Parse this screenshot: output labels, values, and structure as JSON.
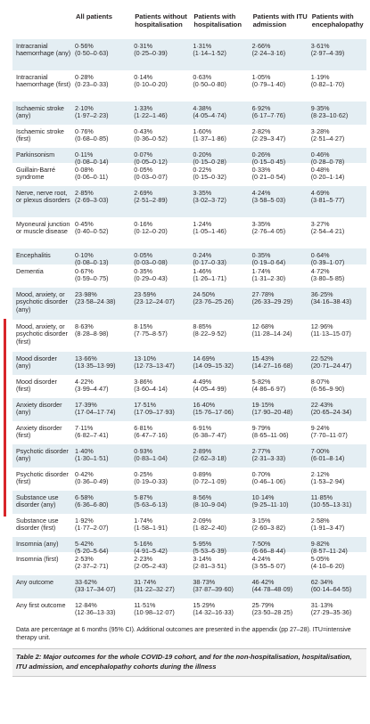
{
  "table": {
    "headers": [
      "All patients",
      "Patients without hospitalisation",
      "Patients with hospitalisation",
      "Patients with ITU admission",
      "Patients with encephalopathy"
    ],
    "rows": [
      {
        "label": "Intracranial haemorrhage (any)",
        "cells": [
          [
            "0·56%",
            "(0·50–0·63)"
          ],
          [
            "0·31%",
            "(0·25–0·39)"
          ],
          [
            "1·31%",
            "(1·14–1·52)"
          ],
          [
            "2·66%",
            "(2·24–3·16)"
          ],
          [
            "3·61%",
            "(2·97–4·39)"
          ]
        ]
      },
      {
        "label": "Intracranial haemorrhage (first)",
        "cells": [
          [
            "0·28%",
            "(0·23–0·33)"
          ],
          [
            "0·14%",
            "(0·10–0·20)"
          ],
          [
            "0·63%",
            "(0·50–0·80)"
          ],
          [
            "1·05%",
            "(0·79–1·40)"
          ],
          [
            "1·19%",
            "(0·82–1·70)"
          ]
        ]
      },
      {
        "label": "Ischaemic stroke (any)",
        "cells": [
          [
            "2·10%",
            "(1·97–2·23)"
          ],
          [
            "1·33%",
            "(1·22–1·46)"
          ],
          [
            "4·38%",
            "(4·05–4·74)"
          ],
          [
            "6·92%",
            "(6·17–7·76)"
          ],
          [
            "9·35%",
            "(8·23–10·62)"
          ]
        ]
      },
      {
        "label": "Ischaemic stroke (first)",
        "cells": [
          [
            "0·76%",
            "(0·68–0·85)"
          ],
          [
            "0·43%",
            "(0·36–0·52)"
          ],
          [
            "1·60%",
            "(1·37–1·86)"
          ],
          [
            "2·82%",
            "(2·29–3·47)"
          ],
          [
            "3·28%",
            "(2·51–4·27)"
          ]
        ]
      },
      {
        "label": "Parkinsonism",
        "cells": [
          [
            "0·11%",
            "(0·08–0·14)"
          ],
          [
            "0·07%",
            "(0·05–0·12)"
          ],
          [
            "0·20%",
            "(0·15–0·28)"
          ],
          [
            "0·26%",
            "(0·15–0·45)"
          ],
          [
            "0·46%",
            "(0·28–0·78)"
          ]
        ]
      },
      {
        "label": "Guillain-Barré syndrome",
        "cells": [
          [
            "0·08%",
            "(0·06–0·11)"
          ],
          [
            "0·05%",
            "(0·03–0·07)"
          ],
          [
            "0·22%",
            "(0·15–0·32)"
          ],
          [
            "0·33%",
            "(0·21–0·54)"
          ],
          [
            "0·48%",
            "(0·20–1·14)"
          ]
        ]
      },
      {
        "label": "Nerve, nerve root, or plexus disorders",
        "cells": [
          [
            "2·85%",
            "(2·69–3·03)"
          ],
          [
            "2·69%",
            "(2·51–2·89)"
          ],
          [
            "3·35%",
            "(3·02–3·72)"
          ],
          [
            "4·24%",
            "(3·58–5·03)"
          ],
          [
            "4·69%",
            "(3·81–5·77)"
          ]
        ]
      },
      {
        "label": "Myoneural junction or muscle disease",
        "cells": [
          [
            "0·45%",
            "(0·40–0·52)"
          ],
          [
            "0·16%",
            "(0·12–0·20)"
          ],
          [
            "1·24%",
            "(1·05–1·46)"
          ],
          [
            "3·35%",
            "(2·76–4·05)"
          ],
          [
            "3·27%",
            "(2·54–4·21)"
          ]
        ]
      },
      {
        "label": "Encephalitis",
        "cells": [
          [
            "0·10%",
            "(0·08–0·13)"
          ],
          [
            "0·05%",
            "(0·03–0·08)"
          ],
          [
            "0·24%",
            "(0·17–0·33)"
          ],
          [
            "0·35%",
            "(0·19–0·64)"
          ],
          [
            "0·64%",
            "(0·39–1·07)"
          ]
        ]
      },
      {
        "label": "Dementia",
        "cells": [
          [
            "0·67%",
            "(0·59–0·75)"
          ],
          [
            "0·35%",
            "(0·29–0·43)"
          ],
          [
            "1·46%",
            "(1·26–1·71)"
          ],
          [
            "1·74%",
            "(1·31–2·30)"
          ],
          [
            "4·72%",
            "(3·80–5·85)"
          ]
        ]
      },
      {
        "label": "Mood, anxiety, or psychotic disorder (any)",
        "cells": [
          [
            "23·98%",
            "(23·58–24·38)"
          ],
          [
            "23·59%",
            "(23·12–24·07)"
          ],
          [
            "24·50%",
            "(23·76–25·26)"
          ],
          [
            "27·78%",
            "(26·33–29·29)"
          ],
          [
            "36·25%",
            "(34·16–38·43)"
          ]
        ]
      },
      {
        "label": "Mood, anxiety, or psychotic disorder (first)",
        "cells": [
          [
            "8·63%",
            "(8·28–8·98)"
          ],
          [
            "8·15%",
            "(7·75–8·57)"
          ],
          [
            "8·85%",
            "(8·22–9·52)"
          ],
          [
            "12·68%",
            "(11·28–14·24)"
          ],
          [
            "12·96%",
            "(11·13–15·07)"
          ]
        ]
      },
      {
        "label": "Mood disorder (any)",
        "cells": [
          [
            "13·66%",
            "(13·35–13·99)"
          ],
          [
            "13·10%",
            "(12·73–13·47)"
          ],
          [
            "14·69%",
            "(14·09–15·32)"
          ],
          [
            "15·43%",
            "(14·27–16·68)"
          ],
          [
            "22·52%",
            "(20·71–24·47)"
          ]
        ]
      },
      {
        "label": "Mood disorder (first)",
        "cells": [
          [
            "4·22%",
            "(3·99–4·47)"
          ],
          [
            "3·86%",
            "(3·60–4·14)"
          ],
          [
            "4·49%",
            "(4·05–4·99)"
          ],
          [
            "5·82%",
            "(4·86–6·97)"
          ],
          [
            "8·07%",
            "(6·56–9·90)"
          ]
        ]
      },
      {
        "label": "Anxiety disorder (any)",
        "cells": [
          [
            "17·39%",
            "(17·04–17·74)"
          ],
          [
            "17·51%",
            "(17·09–17·93)"
          ],
          [
            "16·40%",
            "(15·76–17·06)"
          ],
          [
            "19·15%",
            "(17·90–20·48)"
          ],
          [
            "22·43%",
            "(20·65–24·34)"
          ]
        ]
      },
      {
        "label": "Anxiety disorder (first)",
        "cells": [
          [
            "7·11%",
            "(6·82–7·41)"
          ],
          [
            "6·81%",
            "(6·47–7·16)"
          ],
          [
            "6·91%",
            "(6·38–7·47)"
          ],
          [
            "9·79%",
            "(8·65–11·06)"
          ],
          [
            "9·24%",
            "(7·70–11·07)"
          ]
        ]
      },
      {
        "label": "Psychotic disorder (any)",
        "cells": [
          [
            "1·40%",
            "(1·30–1·51)"
          ],
          [
            "0·93%",
            "(0·83–1·04)"
          ],
          [
            "2·89%",
            "(2·62–3·18)"
          ],
          [
            "2·77%",
            "(2·31–3·33)"
          ],
          [
            "7·00%",
            "(6·01–8·14)"
          ]
        ]
      },
      {
        "label": "Psychotic disorder (first)",
        "cells": [
          [
            "0·42%",
            "(0·36–0·49)"
          ],
          [
            "0·25%",
            "(0·19–0·33)"
          ],
          [
            "0·89%",
            "(0·72–1·09)"
          ],
          [
            "0·70%",
            "(0·46–1·06)"
          ],
          [
            "2·12%",
            "(1·53–2·94)"
          ]
        ]
      },
      {
        "label": "Substance use disorder (any)",
        "cells": [
          [
            "6·58%",
            "(6·36–6·80)"
          ],
          [
            "5·87%",
            "(5·63–6·13)"
          ],
          [
            "8·56%",
            "(8·10–9·04)"
          ],
          [
            "10·14%",
            "(9·25–11·10)"
          ],
          [
            "11·85%",
            "(10·55–13·31)"
          ]
        ]
      },
      {
        "label": "Substance use disorder (first)",
        "cells": [
          [
            "1·92%",
            "(1·77–2·07)"
          ],
          [
            "1·74%",
            "(1·58–1·91)"
          ],
          [
            "2·09%",
            "(1·82–2·40)"
          ],
          [
            "3·15%",
            "(2·60–3·82)"
          ],
          [
            "2·58%",
            "(1·91–3·47)"
          ]
        ]
      },
      {
        "label": "Insomnia (any)",
        "cells": [
          [
            "5·42%",
            "(5·20–5·64)"
          ],
          [
            "5·16%",
            "(4·91–5·42)"
          ],
          [
            "5·95%",
            "(5·53–6·39)"
          ],
          [
            "7·50%",
            "(6·66–8·44)"
          ],
          [
            "9·82%",
            "(8·57–11·24)"
          ]
        ]
      },
      {
        "label": "Insomnia (first)",
        "cells": [
          [
            "2·53%",
            "(2·37–2·71)"
          ],
          [
            "2·23%",
            "(2·05–2·43)"
          ],
          [
            "3·14%",
            "(2·81–3·51)"
          ],
          [
            "4·24%",
            "(3·55–5·07)"
          ],
          [
            "5·05%",
            "(4·10–6·20)"
          ]
        ]
      },
      {
        "label": "Any outcome",
        "cells": [
          [
            "33·62%",
            "(33·17–34·07)"
          ],
          [
            "31·74%",
            "(31·22–32·27)"
          ],
          [
            "38·73%",
            "(37·87–39·60)"
          ],
          [
            "46·42%",
            "(44·78–48·09)"
          ],
          [
            "62·34%",
            "(60·14–64·55)"
          ]
        ]
      },
      {
        "label": "Any first outcome",
        "cells": [
          [
            "12·84%",
            "(12·36–13·33)"
          ],
          [
            "11·51%",
            "(10·98–12·07)"
          ],
          [
            "15·29%",
            "(14·32–16·33)"
          ],
          [
            "25·79%",
            "(23·50–28·25)"
          ],
          [
            "31·13%",
            "(27·29–35·36)"
          ]
        ]
      }
    ]
  },
  "footnote": "Data are percentage at 6 months (95% CI). Additional outcomes are presented in the appendix (pp 27–28). ITU=intensive therapy unit.",
  "caption": {
    "bold": "Table 2: Major outcomes for the whole COVID-19 cohort, and for the non-hospitalisation, hospitalisation, ITU admission, and encephalopathy cohorts during the illness",
    "rest": ""
  }
}
